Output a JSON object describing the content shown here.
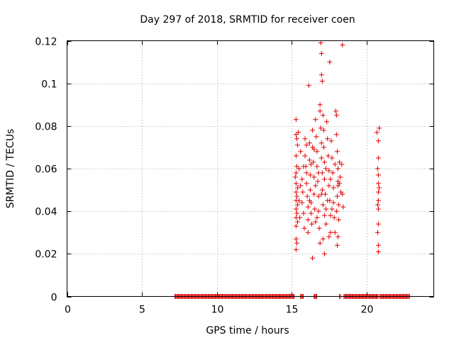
{
  "chart_data": {
    "type": "scatter",
    "title": "Day 297 of 2018, SRMTID for receiver coen",
    "xlabel": "GPS time / hours",
    "ylabel": "SRMTID / TECUs",
    "xlim": [
      0,
      24.5
    ],
    "ylim": [
      0,
      0.12
    ],
    "x_ticks": [
      0,
      5,
      10,
      15,
      20
    ],
    "x_tick_labels": [
      "0",
      "5",
      "10",
      "15",
      "20"
    ],
    "y_ticks": [
      0,
      0.02,
      0.04,
      0.06,
      0.08,
      0.1,
      0.12
    ],
    "y_tick_labels": [
      "0",
      "0.02",
      "0.04",
      "0.06",
      "0.08",
      "0.1",
      "0.12"
    ],
    "grid": true,
    "marker": "+",
    "color": "#e00000",
    "zero_value_segments": [
      [
        7.2,
        15.2
      ],
      [
        15.6,
        15.8
      ],
      [
        16.5,
        16.7
      ],
      [
        18.2,
        18.3
      ],
      [
        18.5,
        20.8
      ],
      [
        20.9,
        22.9
      ]
    ],
    "series": [
      {
        "name": "SRMTID",
        "points": [
          [
            15.3,
            0.083
          ],
          [
            15.3,
            0.076
          ],
          [
            15.35,
            0.074
          ],
          [
            15.4,
            0.071
          ],
          [
            15.3,
            0.066
          ],
          [
            15.35,
            0.061
          ],
          [
            15.3,
            0.058
          ],
          [
            15.25,
            0.056
          ],
          [
            15.3,
            0.053
          ],
          [
            15.4,
            0.051
          ],
          [
            15.3,
            0.049
          ],
          [
            15.35,
            0.047
          ],
          [
            15.3,
            0.045
          ],
          [
            15.4,
            0.043
          ],
          [
            15.3,
            0.041
          ],
          [
            15.35,
            0.039
          ],
          [
            15.3,
            0.037
          ],
          [
            15.4,
            0.035
          ],
          [
            15.3,
            0.033
          ],
          [
            15.3,
            0.027
          ],
          [
            15.35,
            0.025
          ],
          [
            15.3,
            0.022
          ],
          [
            15.45,
            0.077
          ],
          [
            15.5,
            0.06
          ],
          [
            15.5,
            0.045
          ],
          [
            15.55,
            0.037
          ],
          [
            15.6,
            0.068
          ],
          [
            15.7,
            0.055
          ],
          [
            15.75,
            0.049
          ],
          [
            15.8,
            0.039
          ],
          [
            15.85,
            0.032
          ],
          [
            15.9,
            0.074
          ],
          [
            15.9,
            0.066
          ],
          [
            15.95,
            0.061
          ],
          [
            16.0,
            0.058
          ],
          [
            16.0,
            0.053
          ],
          [
            16.05,
            0.047
          ],
          [
            16.1,
            0.042
          ],
          [
            16.1,
            0.036
          ],
          [
            16.15,
            0.099
          ],
          [
            16.2,
            0.072
          ],
          [
            16.2,
            0.064
          ],
          [
            16.25,
            0.057
          ],
          [
            16.25,
            0.05
          ],
          [
            16.3,
            0.044
          ],
          [
            16.3,
            0.039
          ],
          [
            16.35,
            0.034
          ],
          [
            16.4,
            0.078
          ],
          [
            16.4,
            0.07
          ],
          [
            16.45,
            0.063
          ],
          [
            16.5,
            0.056
          ],
          [
            16.5,
            0.048
          ],
          [
            16.55,
            0.041
          ],
          [
            16.6,
            0.035
          ],
          [
            16.4,
            0.018
          ],
          [
            16.6,
            0.083
          ],
          [
            16.65,
            0.075
          ],
          [
            16.7,
            0.068
          ],
          [
            16.7,
            0.061
          ],
          [
            16.75,
            0.054
          ],
          [
            16.8,
            0.047
          ],
          [
            16.8,
            0.04
          ],
          [
            16.85,
            0.032
          ],
          [
            16.9,
            0.09
          ],
          [
            16.9,
            0.087
          ],
          [
            16.95,
            0.079
          ],
          [
            17.0,
            0.072
          ],
          [
            17.0,
            0.065
          ],
          [
            17.05,
            0.058
          ],
          [
            17.05,
            0.05
          ],
          [
            17.1,
            0.043
          ],
          [
            16.95,
            0.119
          ],
          [
            17.0,
            0.114
          ],
          [
            17.0,
            0.104
          ],
          [
            17.05,
            0.101
          ],
          [
            17.1,
            0.085
          ],
          [
            17.15,
            0.078
          ],
          [
            17.15,
            0.07
          ],
          [
            17.2,
            0.063
          ],
          [
            17.2,
            0.055
          ],
          [
            17.25,
            0.048
          ],
          [
            17.3,
            0.041
          ],
          [
            17.3,
            0.034
          ],
          [
            17.1,
            0.027
          ],
          [
            17.2,
            0.02
          ],
          [
            17.35,
            0.082
          ],
          [
            17.4,
            0.074
          ],
          [
            17.45,
            0.066
          ],
          [
            17.5,
            0.059
          ],
          [
            17.5,
            0.052
          ],
          [
            17.55,
            0.045
          ],
          [
            17.6,
            0.038
          ],
          [
            17.6,
            0.03
          ],
          [
            17.55,
            0.11
          ],
          [
            17.65,
            0.073
          ],
          [
            17.7,
            0.065
          ],
          [
            17.75,
            0.058
          ],
          [
            17.8,
            0.051
          ],
          [
            17.8,
            0.044
          ],
          [
            17.85,
            0.037
          ],
          [
            17.9,
            0.03
          ],
          [
            17.95,
            0.087
          ],
          [
            18.0,
            0.085
          ],
          [
            18.0,
            0.076
          ],
          [
            18.05,
            0.068
          ],
          [
            18.1,
            0.06
          ],
          [
            18.1,
            0.054
          ],
          [
            18.1,
            0.052
          ],
          [
            18.05,
            0.047
          ],
          [
            18.15,
            0.043
          ],
          [
            18.15,
            0.036
          ],
          [
            18.1,
            0.028
          ],
          [
            18.05,
            0.024
          ],
          [
            18.2,
            0.063
          ],
          [
            18.25,
            0.056
          ],
          [
            18.3,
            0.049
          ],
          [
            18.4,
            0.118
          ],
          [
            18.4,
            0.048
          ],
          [
            18.45,
            0.042
          ],
          [
            18.35,
            0.062
          ],
          [
            15.6,
            0.052
          ],
          [
            15.7,
            0.044
          ],
          [
            15.8,
            0.061
          ],
          [
            16.0,
            0.071
          ],
          [
            16.2,
            0.045
          ],
          [
            16.3,
            0.062
          ],
          [
            16.5,
            0.069
          ],
          [
            16.6,
            0.052
          ],
          [
            16.7,
            0.037
          ],
          [
            16.8,
            0.058
          ],
          [
            17.0,
            0.048
          ],
          [
            17.2,
            0.038
          ],
          [
            17.3,
            0.06
          ],
          [
            17.4,
            0.045
          ],
          [
            17.6,
            0.055
          ],
          [
            17.7,
            0.041
          ],
          [
            17.9,
            0.062
          ],
          [
            18.0,
            0.04
          ],
          [
            18.2,
            0.053
          ],
          [
            16.1,
            0.03
          ],
          [
            16.9,
            0.025
          ],
          [
            17.5,
            0.028
          ],
          [
            20.7,
            0.077
          ],
          [
            20.85,
            0.079
          ],
          [
            20.8,
            0.073
          ],
          [
            20.8,
            0.065
          ],
          [
            20.75,
            0.06
          ],
          [
            20.8,
            0.057
          ],
          [
            20.8,
            0.053
          ],
          [
            20.85,
            0.051
          ],
          [
            20.8,
            0.049
          ],
          [
            20.8,
            0.045
          ],
          [
            20.75,
            0.043
          ],
          [
            20.8,
            0.041
          ],
          [
            20.8,
            0.034
          ],
          [
            20.75,
            0.03
          ],
          [
            20.8,
            0.024
          ],
          [
            20.8,
            0.021
          ]
        ]
      }
    ]
  }
}
